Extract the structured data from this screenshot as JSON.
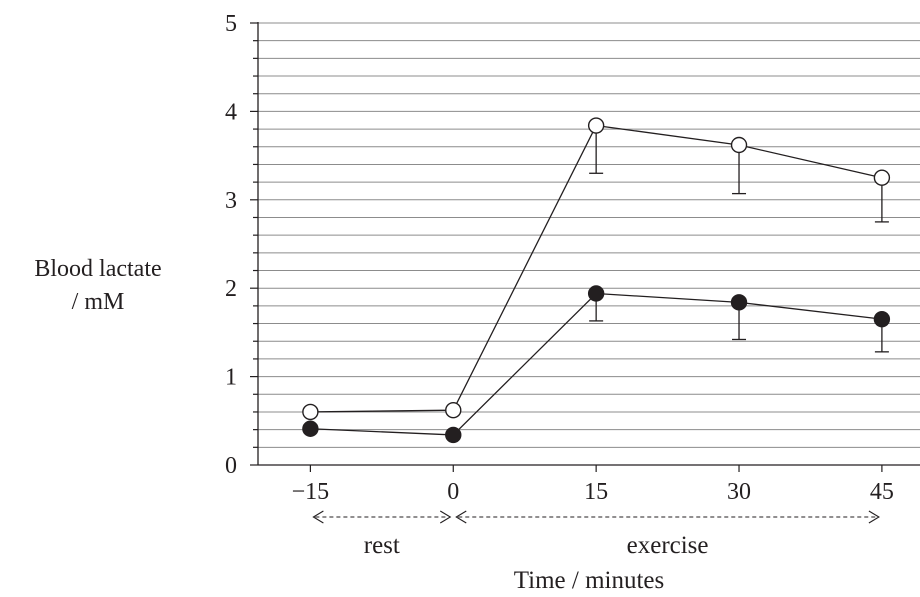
{
  "chart_data": {
    "type": "line",
    "title": "",
    "ylabel_lines": [
      "Blood lactate",
      "/ mM"
    ],
    "xlabel": "Time / minutes",
    "x": [
      -15,
      0,
      15,
      30,
      45
    ],
    "x_tick_labels": [
      "−15",
      "0",
      "15",
      "30",
      "45"
    ],
    "y_ticks": [
      0,
      1,
      2,
      3,
      4,
      5
    ],
    "ylim": [
      0,
      5
    ],
    "xlim": [
      -20.5,
      49
    ],
    "grid": "horizontal, every 0.2 mM",
    "series": [
      {
        "marker": "open-circle",
        "values": [
          0.6,
          0.62,
          3.84,
          3.62,
          3.25
        ],
        "error_lower": [
          null,
          null,
          3.3,
          3.07,
          2.75
        ]
      },
      {
        "marker": "filled-circle",
        "values": [
          0.41,
          0.34,
          1.94,
          1.84,
          1.65
        ],
        "error_lower": [
          null,
          null,
          1.63,
          1.42,
          1.28
        ]
      }
    ],
    "phases": [
      {
        "label": "rest",
        "from": -15,
        "to": 0
      },
      {
        "label": "exercise",
        "from": 0,
        "to": 45
      }
    ],
    "colors": {
      "ink": "#231f20",
      "grid": "#8c8c8c",
      "open_fill": "#ffffff"
    }
  }
}
